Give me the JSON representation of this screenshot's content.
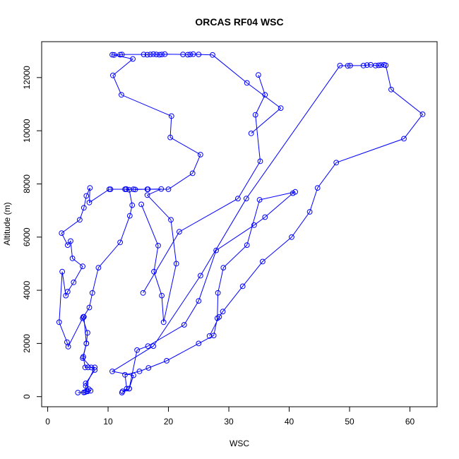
{
  "chart_data": {
    "type": "line",
    "title": "ORCAS RF04 WSC",
    "xlabel": "WSC",
    "ylabel": "Altitude (m)",
    "xlim": [
      -1,
      64.5
    ],
    "ylim": [
      -380,
      13350
    ],
    "xticks": [
      0,
      10,
      20,
      30,
      40,
      50,
      60
    ],
    "yticks": [
      0,
      2000,
      4000,
      6000,
      8000,
      10000,
      12000
    ],
    "grid": false,
    "legend": "none",
    "marker": "open-circle",
    "color": "#0000ff",
    "series": [
      {
        "points": [
          [
            5.0,
            150
          ],
          [
            6.0,
            160
          ],
          [
            6.2,
            170
          ],
          [
            6.6,
            200
          ],
          [
            7.1,
            220
          ],
          [
            6.8,
            280
          ],
          [
            6.3,
            500
          ],
          [
            7.8,
            1000
          ],
          [
            7.2,
            1100
          ],
          [
            5.8,
            1450
          ],
          [
            6.4,
            2000
          ],
          [
            6.6,
            2400
          ],
          [
            5.8,
            2950
          ],
          [
            6.9,
            3350
          ],
          [
            7.4,
            3900
          ],
          [
            8.4,
            4850
          ],
          [
            12.0,
            5800
          ],
          [
            13.6,
            6800
          ],
          [
            14.0,
            7200
          ],
          [
            13.5,
            7780
          ],
          [
            12.8,
            7800
          ],
          [
            13.0,
            7810
          ],
          [
            14.2,
            7800
          ],
          [
            14.5,
            7790
          ],
          [
            16.6,
            7800
          ],
          [
            18.8,
            7810
          ],
          [
            16.5,
            7580
          ],
          [
            20.4,
            6650
          ],
          [
            21.3,
            5000
          ],
          [
            19.2,
            2800
          ],
          [
            18.9,
            3800
          ],
          [
            17.6,
            4700
          ],
          [
            18.3,
            5680
          ],
          [
            15.5,
            7230
          ]
        ]
      },
      {
        "points": [
          [
            15.8,
            3900
          ],
          [
            21.8,
            6200
          ],
          [
            31.5,
            7450
          ],
          [
            35.2,
            8850
          ],
          [
            34.4,
            10600
          ],
          [
            36.0,
            11350
          ],
          [
            34.9,
            12100
          ]
        ]
      },
      {
        "points": [
          [
            33.7,
            9900
          ],
          [
            38.6,
            10850
          ],
          [
            33.0,
            11800
          ],
          [
            27.3,
            12850
          ],
          [
            25.0,
            12870
          ],
          [
            24.1,
            12880
          ],
          [
            23.6,
            12870
          ],
          [
            23.2,
            12860
          ],
          [
            22.4,
            12870
          ],
          [
            19.4,
            12880
          ],
          [
            18.9,
            12870
          ],
          [
            18.5,
            12860
          ],
          [
            18.0,
            12870
          ],
          [
            17.5,
            12880
          ],
          [
            17.0,
            12870
          ],
          [
            16.5,
            12860
          ],
          [
            15.9,
            12870
          ],
          [
            12.3,
            12870
          ],
          [
            12.0,
            12860
          ],
          [
            11.0,
            12850
          ],
          [
            10.7,
            12860
          ],
          [
            14.1,
            12700
          ],
          [
            10.8,
            12080
          ],
          [
            12.2,
            11350
          ],
          [
            20.5,
            10550
          ],
          [
            20.3,
            9750
          ],
          [
            25.3,
            9100
          ],
          [
            24.0,
            8400
          ],
          [
            20.0,
            7800
          ],
          [
            16.5,
            7800
          ],
          [
            13.0,
            7800
          ],
          [
            10.4,
            7800
          ],
          [
            10.2,
            7800
          ],
          [
            6.9,
            7300
          ],
          [
            7.0,
            7850
          ],
          [
            6.4,
            7550
          ],
          [
            6.0,
            7100
          ],
          [
            5.3,
            6650
          ],
          [
            2.3,
            6150
          ],
          [
            3.3,
            5700
          ],
          [
            3.8,
            5850
          ],
          [
            4.1,
            5200
          ],
          [
            5.8,
            4900
          ],
          [
            4.3,
            4300
          ],
          [
            3.3,
            3950
          ],
          [
            3.0,
            3800
          ],
          [
            2.4,
            4700
          ],
          [
            1.9,
            2800
          ],
          [
            3.2,
            2050
          ],
          [
            3.4,
            1880
          ],
          [
            5.9,
            3000
          ],
          [
            6.0,
            3000
          ],
          [
            6.4,
            2000
          ],
          [
            5.9,
            1500
          ],
          [
            6.2,
            1100
          ],
          [
            6.7,
            1100
          ],
          [
            7.8,
            1100
          ],
          [
            6.3,
            400
          ],
          [
            6.4,
            200
          ]
        ]
      },
      {
        "points": [
          [
            12.3,
            150
          ],
          [
            13.5,
            300
          ],
          [
            14.8,
            1750
          ],
          [
            16.6,
            1900
          ],
          [
            22.6,
            2700
          ],
          [
            25.0,
            3600
          ],
          [
            27.9,
            5500
          ],
          [
            34.2,
            6450
          ],
          [
            36.0,
            6750
          ],
          [
            40.6,
            7650
          ],
          [
            41.0,
            7700
          ],
          [
            35.1,
            7400
          ],
          [
            33.0,
            5700
          ],
          [
            29.1,
            4850
          ],
          [
            28.2,
            3900
          ],
          [
            28.1,
            2950
          ],
          [
            27.5,
            2300
          ],
          [
            25.0,
            2000
          ],
          [
            19.7,
            1350
          ],
          [
            16.7,
            1080
          ],
          [
            15.2,
            950
          ],
          [
            12.8,
            820
          ],
          [
            13.1,
            300
          ],
          [
            12.4,
            200
          ],
          [
            13.5,
            300
          ],
          [
            14.2,
            800
          ],
          [
            10.7,
            950
          ],
          [
            17.5,
            1900
          ],
          [
            25.3,
            4550
          ],
          [
            32.9,
            7450
          ],
          [
            48.4,
            12450
          ],
          [
            49.7,
            12440
          ],
          [
            50.1,
            12450
          ],
          [
            52.3,
            12450
          ],
          [
            52.9,
            12470
          ],
          [
            53.5,
            12480
          ],
          [
            54.3,
            12450
          ],
          [
            54.8,
            12460
          ],
          [
            55.2,
            12470
          ],
          [
            55.7,
            12480
          ],
          [
            56.0,
            12460
          ],
          [
            56.9,
            11550
          ],
          [
            62.1,
            10620
          ],
          [
            59.0,
            9700
          ],
          [
            47.8,
            8800
          ],
          [
            44.7,
            7850
          ],
          [
            43.4,
            6950
          ],
          [
            40.4,
            6000
          ],
          [
            35.6,
            5080
          ],
          [
            32.3,
            4150
          ],
          [
            29.0,
            3200
          ],
          [
            28.4,
            3000
          ],
          [
            26.8,
            2280
          ]
        ]
      }
    ]
  }
}
